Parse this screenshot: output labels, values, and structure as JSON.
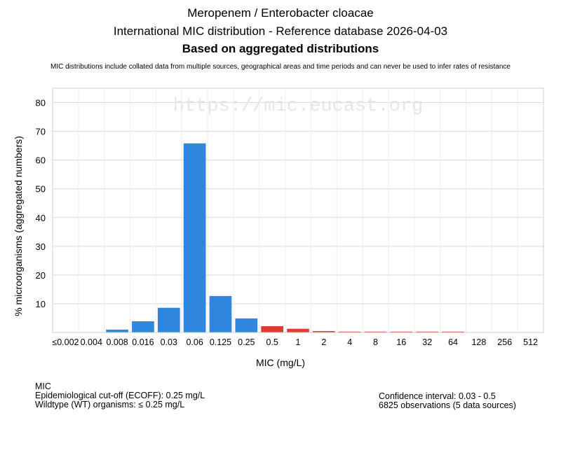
{
  "header": {
    "title_line1": "Meropenem / Enterobacter cloacae",
    "title_line2": "International MIC distribution - Reference database 2026-04-03",
    "title_line3": "Based on aggregated distributions",
    "disclaimer": "MIC distributions include collated data from multiple sources, geographical areas and time periods and can never be used to infer rates of resistance"
  },
  "watermark": "https://mic.eucast.org",
  "colors": {
    "wildtype": "#2e86de",
    "non_wildtype": "#e03c31",
    "grid": "#d9d9d9",
    "watermark": "#e6e6e6"
  },
  "chart_data": {
    "type": "bar",
    "categories": [
      "≤0.002",
      "0.004",
      "0.008",
      "0.016",
      "0.03",
      "0.06",
      "0.125",
      "0.25",
      "0.5",
      "1",
      "2",
      "4",
      "8",
      "16",
      "32",
      "64",
      "128",
      "256",
      "512"
    ],
    "values": [
      0,
      0,
      1.0,
      3.9,
      8.6,
      65.8,
      12.7,
      4.9,
      2.2,
      1.3,
      0.5,
      0.3,
      0.3,
      0.3,
      0.3,
      0.3,
      0,
      0,
      0
    ],
    "wildtype": [
      true,
      true,
      true,
      true,
      true,
      true,
      true,
      true,
      false,
      false,
      false,
      false,
      false,
      false,
      false,
      false,
      false,
      false,
      false
    ],
    "xlabel": "MIC (mg/L)",
    "ylabel": "% microorganisms (aggregated numbers)",
    "ylim": [
      0,
      85
    ],
    "yticks": [
      10,
      20,
      30,
      40,
      50,
      60,
      70,
      80
    ],
    "grid": true
  },
  "footer": {
    "left_line1": "MIC",
    "left_line2": "Epidemiological cut-off (ECOFF): 0.25 mg/L",
    "left_line3": "Wildtype (WT) organisms: ≤ 0.25 mg/L",
    "right_line1": "Confidence interval: 0.03 - 0.5",
    "right_line2": "6825 observations (5 data sources)"
  }
}
